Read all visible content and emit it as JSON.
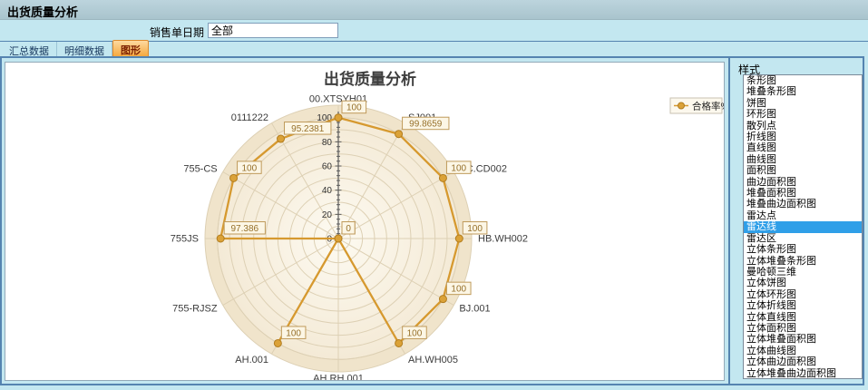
{
  "window": {
    "title": "出货质量分析"
  },
  "filter": {
    "label": "销售单日期",
    "value": "全部"
  },
  "tabs": {
    "items": [
      "汇总数据",
      "明细数据",
      "图形"
    ],
    "selected": "图形"
  },
  "style_panel": {
    "title": "样式",
    "selected": "雷达线",
    "items": [
      "条形图",
      "堆叠条形图",
      "饼图",
      "环形图",
      "散列点",
      "折线图",
      "直线图",
      "曲线图",
      "面积图",
      "曲边面积图",
      "堆叠面积图",
      "堆叠曲边面积图",
      "雷达点",
      "雷达线",
      "雷达区",
      "立体条形图",
      "立体堆叠条形图",
      "曼哈顿三维",
      "立体饼图",
      "立体环形图",
      "立体折线图",
      "立体直线图",
      "立体面积图",
      "立体堆叠面积图",
      "立体曲线图",
      "立体曲边面积图",
      "立体堆叠曲边面积图"
    ]
  },
  "chart_data": {
    "type": "radar-line",
    "title": "出货质量分析",
    "categories": [
      "00.XTSYH01",
      "SJ001",
      "SC.CD002",
      "HB.WH002",
      "BJ.001",
      "AH.WH005",
      "AH.RH.001",
      "AH.001",
      "755-RJSZ",
      "755JS",
      "755-CS",
      "0111222"
    ],
    "series": [
      {
        "name": "合格率%",
        "color": "#d6992f",
        "values": [
          100,
          99.8659,
          100,
          100,
          100,
          100,
          0,
          100,
          0,
          97.386,
          100,
          95.2381
        ]
      }
    ],
    "axis": {
      "min": 0,
      "max": 100,
      "major_tick_step": 20,
      "minor_tick_step": 4,
      "tick_labels": [
        "0",
        "20",
        "40",
        "60",
        "80",
        "100"
      ]
    },
    "start_angle_deg": 90,
    "direction": "clockwise",
    "grid": true,
    "legend_position": "top-right",
    "colors": {
      "series": "#d6992f",
      "point_fill": "#dba238",
      "point_stroke": "#b17c1e",
      "label_box_bg": "#fcf6e5",
      "label_box_border": "#bf9a5a",
      "label_text": "#96702a",
      "disc_inner": "#fdfaf1",
      "disc_outer": "#f4ead6",
      "disc_band": "#f0e4cb",
      "grid_line": "#ddd0b4",
      "axis_line": "#5a5a5a",
      "legend_bg": "#fcf8ed",
      "legend_border": "#c9c2b2"
    }
  }
}
